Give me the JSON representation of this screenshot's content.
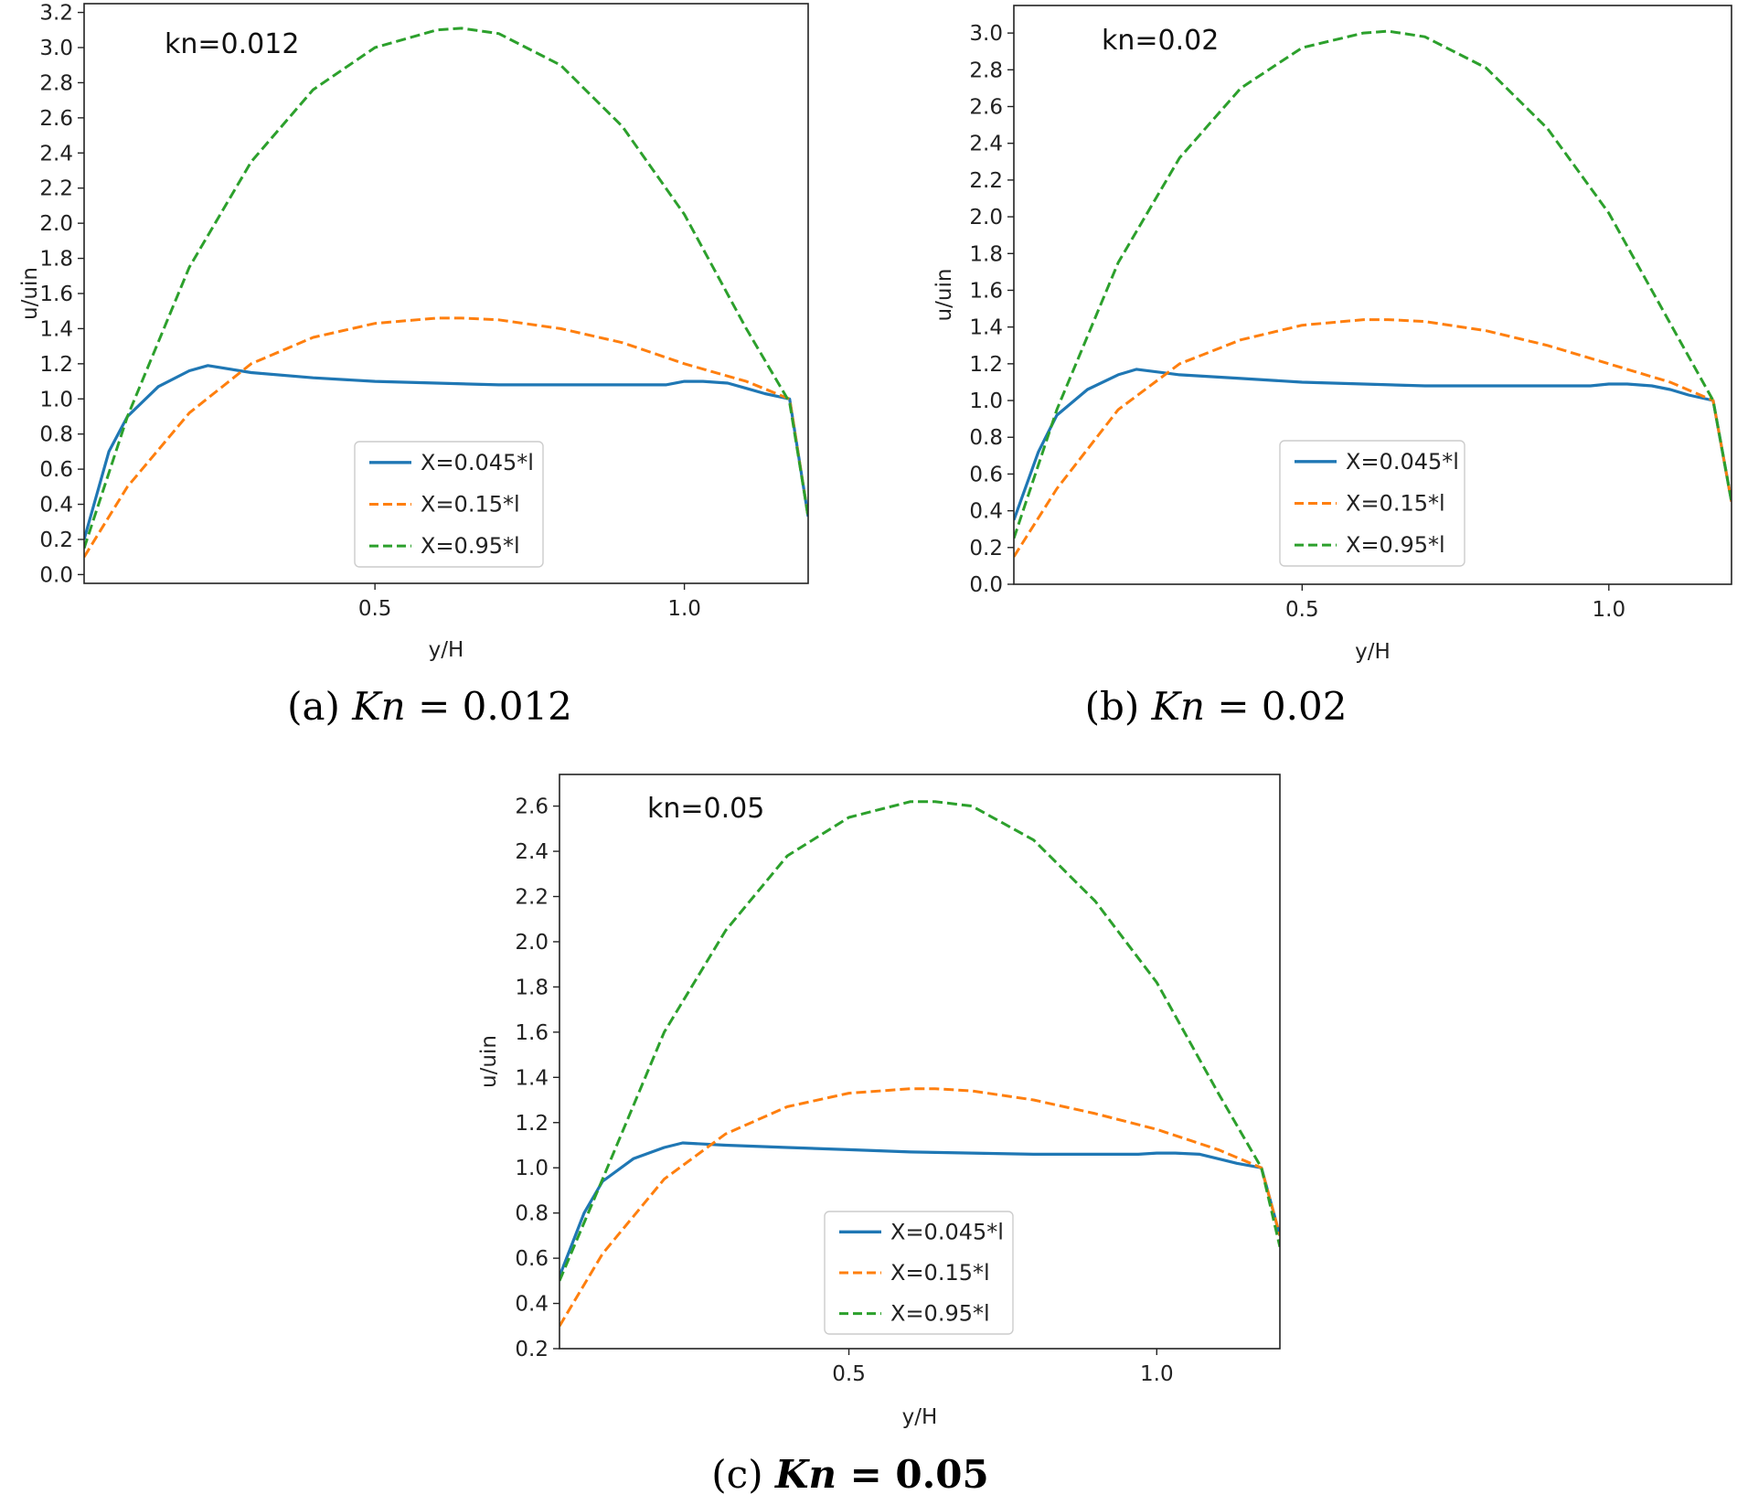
{
  "chart_data": [
    {
      "type": "line",
      "annotation": "kn=0.012",
      "caption_prefix": "(a)",
      "caption_var": "Kn",
      "caption_eq": "= 0.012",
      "caption_bold": false,
      "xlabel": "y/H",
      "ylabel": "u/uin",
      "xlim": [
        0.03,
        1.2
      ],
      "ylim": [
        -0.05,
        3.25
      ],
      "xticks": [
        "0.5",
        "1.0"
      ],
      "xtick_values": [
        0.5,
        1.0
      ],
      "yticks": [
        "0.0",
        "0.2",
        "0.4",
        "0.6",
        "0.8",
        "1.0",
        "1.2",
        "1.4",
        "1.6",
        "1.8",
        "2.0",
        "2.2",
        "2.4",
        "2.6",
        "2.8",
        "3.0",
        "3.2"
      ],
      "ytick_values": [
        0.0,
        0.2,
        0.4,
        0.6,
        0.8,
        1.0,
        1.2,
        1.4,
        1.6,
        1.8,
        2.0,
        2.2,
        2.4,
        2.6,
        2.8,
        3.0,
        3.2
      ],
      "legend_position": "lower-center",
      "series": [
        {
          "name": "X=0.045*l",
          "color": "#1f77b4",
          "style": "solid",
          "x": [
            0.03,
            0.07,
            0.1,
            0.15,
            0.2,
            0.23,
            0.3,
            0.4,
            0.5,
            0.6,
            0.7,
            0.8,
            0.9,
            0.97,
            1.0,
            1.03,
            1.07,
            1.1,
            1.13,
            1.17,
            1.2
          ],
          "y": [
            0.2,
            0.7,
            0.9,
            1.07,
            1.16,
            1.19,
            1.15,
            1.12,
            1.1,
            1.09,
            1.08,
            1.08,
            1.08,
            1.08,
            1.1,
            1.1,
            1.09,
            1.06,
            1.03,
            1.0,
            0.33
          ]
        },
        {
          "name": "X=0.15*l",
          "color": "#ff7f0e",
          "style": "dashed",
          "x": [
            0.03,
            0.1,
            0.2,
            0.3,
            0.4,
            0.5,
            0.6,
            0.64,
            0.7,
            0.8,
            0.9,
            1.0,
            1.1,
            1.17,
            1.2
          ],
          "y": [
            0.1,
            0.5,
            0.92,
            1.2,
            1.35,
            1.43,
            1.46,
            1.46,
            1.45,
            1.4,
            1.32,
            1.2,
            1.1,
            1.0,
            0.33
          ]
        },
        {
          "name": "X=0.95*l",
          "color": "#2ca02c",
          "style": "dashed",
          "x": [
            0.03,
            0.1,
            0.2,
            0.3,
            0.4,
            0.5,
            0.6,
            0.64,
            0.7,
            0.8,
            0.9,
            1.0,
            1.1,
            1.17,
            1.2
          ],
          "y": [
            0.15,
            0.9,
            1.75,
            2.35,
            2.76,
            3.0,
            3.1,
            3.11,
            3.08,
            2.9,
            2.55,
            2.05,
            1.4,
            0.98,
            0.33
          ]
        }
      ]
    },
    {
      "type": "line",
      "annotation": "kn=0.02",
      "caption_prefix": "(b)",
      "caption_var": "Kn",
      "caption_eq": "= 0.02",
      "caption_bold": false,
      "xlabel": "y/H",
      "ylabel": "u/uin",
      "xlim": [
        0.03,
        1.2
      ],
      "ylim": [
        0.0,
        3.15
      ],
      "xticks": [
        "0.5",
        "1.0"
      ],
      "xtick_values": [
        0.5,
        1.0
      ],
      "yticks": [
        "0.0",
        "0.2",
        "0.4",
        "0.6",
        "0.8",
        "1.0",
        "1.2",
        "1.4",
        "1.6",
        "1.8",
        "2.0",
        "2.2",
        "2.4",
        "2.6",
        "2.8",
        "3.0"
      ],
      "ytick_values": [
        0.0,
        0.2,
        0.4,
        0.6,
        0.8,
        1.0,
        1.2,
        1.4,
        1.6,
        1.8,
        2.0,
        2.2,
        2.4,
        2.6,
        2.8,
        3.0
      ],
      "legend_position": "lower-center",
      "series": [
        {
          "name": "X=0.045*l",
          "color": "#1f77b4",
          "style": "solid",
          "x": [
            0.03,
            0.07,
            0.1,
            0.15,
            0.2,
            0.23,
            0.3,
            0.4,
            0.5,
            0.6,
            0.7,
            0.8,
            0.9,
            0.97,
            1.0,
            1.03,
            1.07,
            1.1,
            1.13,
            1.17,
            1.2
          ],
          "y": [
            0.35,
            0.72,
            0.92,
            1.06,
            1.14,
            1.17,
            1.14,
            1.12,
            1.1,
            1.09,
            1.08,
            1.08,
            1.08,
            1.08,
            1.09,
            1.09,
            1.08,
            1.06,
            1.03,
            1.0,
            0.45
          ]
        },
        {
          "name": "X=0.15*l",
          "color": "#ff7f0e",
          "style": "dashed",
          "x": [
            0.03,
            0.1,
            0.2,
            0.3,
            0.4,
            0.5,
            0.6,
            0.64,
            0.7,
            0.8,
            0.9,
            1.0,
            1.1,
            1.17,
            1.2
          ],
          "y": [
            0.15,
            0.52,
            0.95,
            1.2,
            1.33,
            1.41,
            1.44,
            1.44,
            1.43,
            1.38,
            1.3,
            1.2,
            1.1,
            1.0,
            0.45
          ]
        },
        {
          "name": "X=0.95*l",
          "color": "#2ca02c",
          "style": "dashed",
          "x": [
            0.03,
            0.1,
            0.2,
            0.3,
            0.4,
            0.5,
            0.6,
            0.64,
            0.7,
            0.8,
            0.9,
            1.0,
            1.1,
            1.17,
            1.2
          ],
          "y": [
            0.25,
            0.95,
            1.75,
            2.32,
            2.7,
            2.92,
            3.0,
            3.01,
            2.98,
            2.81,
            2.48,
            2.02,
            1.42,
            1.0,
            0.45
          ]
        }
      ]
    },
    {
      "type": "line",
      "annotation": "kn=0.05",
      "caption_prefix": "(c)",
      "caption_var": "Kn",
      "caption_eq": "= 0.05",
      "caption_bold": true,
      "xlabel": "y/H",
      "ylabel": "u/uin",
      "xlim": [
        0.03,
        1.2
      ],
      "ylim": [
        0.2,
        2.74
      ],
      "xticks": [
        "0.5",
        "1.0"
      ],
      "xtick_values": [
        0.5,
        1.0
      ],
      "yticks": [
        "0.2",
        "0.4",
        "0.6",
        "0.8",
        "1.0",
        "1.2",
        "1.4",
        "1.6",
        "1.8",
        "2.0",
        "2.2",
        "2.4",
        "2.6"
      ],
      "ytick_values": [
        0.2,
        0.4,
        0.6,
        0.8,
        1.0,
        1.2,
        1.4,
        1.6,
        1.8,
        2.0,
        2.2,
        2.4,
        2.6
      ],
      "legend_position": "lower-center",
      "series": [
        {
          "name": "X=0.045*l",
          "color": "#1f77b4",
          "style": "solid",
          "x": [
            0.03,
            0.07,
            0.1,
            0.15,
            0.2,
            0.23,
            0.3,
            0.4,
            0.5,
            0.6,
            0.7,
            0.8,
            0.9,
            0.97,
            1.0,
            1.03,
            1.07,
            1.1,
            1.13,
            1.17,
            1.2
          ],
          "y": [
            0.52,
            0.8,
            0.94,
            1.04,
            1.09,
            1.11,
            1.1,
            1.09,
            1.08,
            1.07,
            1.065,
            1.06,
            1.06,
            1.06,
            1.065,
            1.065,
            1.06,
            1.04,
            1.02,
            1.0,
            0.7
          ]
        },
        {
          "name": "X=0.15*l",
          "color": "#ff7f0e",
          "style": "dashed",
          "x": [
            0.03,
            0.1,
            0.2,
            0.3,
            0.4,
            0.5,
            0.6,
            0.64,
            0.7,
            0.8,
            0.9,
            1.0,
            1.1,
            1.17,
            1.2
          ],
          "y": [
            0.3,
            0.62,
            0.95,
            1.15,
            1.27,
            1.33,
            1.35,
            1.35,
            1.34,
            1.3,
            1.24,
            1.17,
            1.08,
            1.0,
            0.7
          ]
        },
        {
          "name": "X=0.95*l",
          "color": "#2ca02c",
          "style": "dashed",
          "x": [
            0.03,
            0.1,
            0.2,
            0.3,
            0.4,
            0.5,
            0.6,
            0.64,
            0.7,
            0.8,
            0.9,
            1.0,
            1.1,
            1.17,
            1.2
          ],
          "y": [
            0.5,
            0.95,
            1.6,
            2.05,
            2.38,
            2.55,
            2.62,
            2.62,
            2.6,
            2.45,
            2.18,
            1.82,
            1.33,
            1.0,
            0.65
          ]
        }
      ]
    }
  ]
}
